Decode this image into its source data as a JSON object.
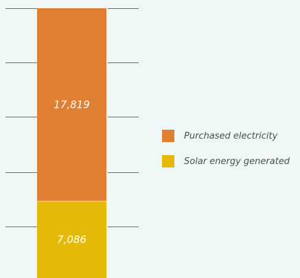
{
  "chart_data": {
    "type": "bar",
    "stacked": true,
    "categories": [
      ""
    ],
    "series": [
      {
        "name": "Solar energy generated",
        "values": [
          7086
        ],
        "label": "7,086",
        "color": "#e5b907"
      },
      {
        "name": "Purchased electricity",
        "values": [
          17819
        ],
        "label": "17,819",
        "color": "#e07f32"
      }
    ],
    "ylim": [
      0,
      24905
    ],
    "grid": true,
    "legend_position": "right",
    "colors": {
      "background": "#f0f8f7",
      "gridline": "#6e6e6e",
      "label_text": "#ffffff"
    }
  }
}
